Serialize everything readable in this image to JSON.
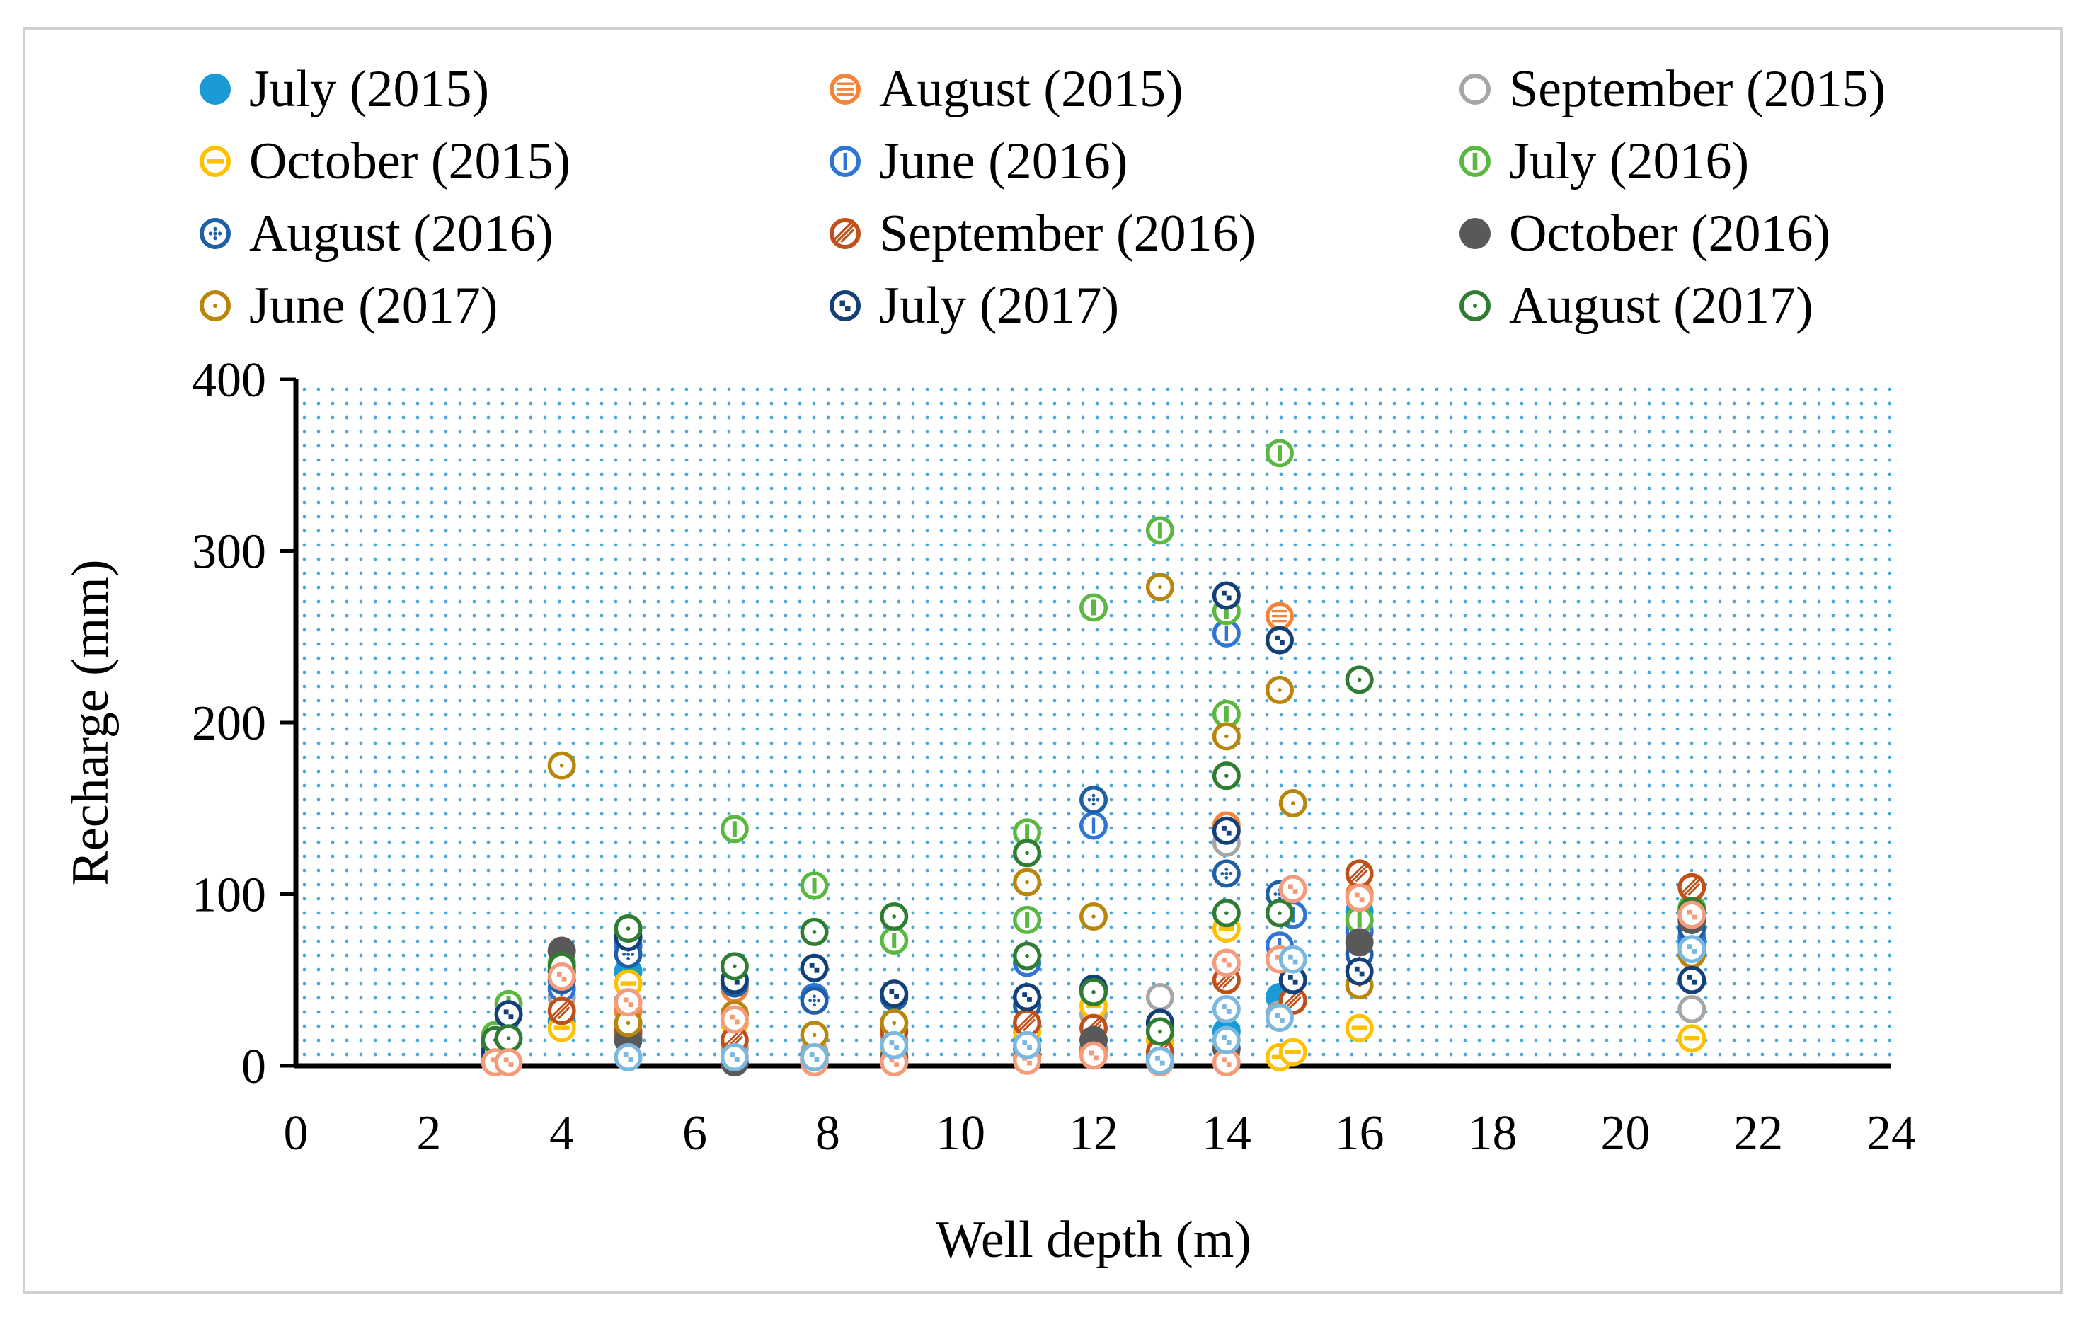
{
  "chart_data": {
    "type": "scatter",
    "title": "",
    "xlabel": "Well depth (m)",
    "ylabel": "Recharge (mm)",
    "xlim": [
      0,
      24
    ],
    "ylim": [
      0,
      400
    ],
    "x_ticks": [
      0,
      2,
      4,
      6,
      8,
      10,
      12,
      14,
      16,
      18,
      20,
      22,
      24
    ],
    "y_ticks": [
      0,
      100,
      200,
      300,
      400
    ],
    "grid": false,
    "plot_background": "dotted",
    "legend_position": "top",
    "series": [
      {
        "name": "July (2015)",
        "color": "#1a9ad6",
        "marker": "filled-circle",
        "x": [
          3.0,
          4.0,
          5.0,
          6.6,
          7.8,
          9.0,
          11.0,
          12.0,
          13.0,
          14.0,
          14.8,
          16.0,
          21.0
        ],
        "y": [
          5,
          26,
          55,
          30,
          6,
          10,
          15,
          10,
          5,
          20,
          40,
          90,
          70
        ]
      },
      {
        "name": "August (2015)",
        "color": "#f4843a",
        "marker": "horizontal-lines",
        "x": [
          3.0,
          4.0,
          5.0,
          6.6,
          7.8,
          9.0,
          11.0,
          12.0,
          13.0,
          14.0,
          14.8,
          16.0,
          21.0
        ],
        "y": [
          3,
          55,
          32,
          45,
          3,
          3,
          5,
          8,
          3,
          140,
          262,
          100,
          85
        ]
      },
      {
        "name": "September (2015)",
        "color": "#a6a6a6",
        "marker": "open-circle",
        "x": [
          3.0,
          4.0,
          5.0,
          6.6,
          7.8,
          9.0,
          11.0,
          12.0,
          13.0,
          14.0,
          14.8,
          16.0,
          21.0
        ],
        "y": [
          8,
          40,
          18,
          10,
          8,
          15,
          25,
          30,
          40,
          130,
          30,
          80,
          33
        ]
      },
      {
        "name": "October (2015)",
        "color": "#ffc000",
        "marker": "horizontal-bar",
        "x": [
          3.0,
          4.0,
          5.0,
          6.6,
          7.8,
          9.0,
          11.0,
          12.0,
          13.0,
          14.0,
          14.8,
          15.0,
          16.0,
          21.0
        ],
        "y": [
          5,
          22,
          48,
          25,
          5,
          8,
          20,
          35,
          15,
          80,
          5,
          8,
          22,
          16
        ]
      },
      {
        "name": "June (2016)",
        "color": "#2e75d6",
        "marker": "vertical-line",
        "x": [
          3.0,
          4.0,
          5.0,
          6.6,
          7.8,
          9.0,
          11.0,
          12.0,
          13.0,
          14.0,
          14.8,
          15.0,
          16.0,
          21.0
        ],
        "y": [
          10,
          45,
          70,
          50,
          40,
          25,
          60,
          140,
          20,
          252,
          70,
          88,
          78,
          75
        ]
      },
      {
        "name": "July (2016)",
        "color": "#5ab740",
        "marker": "vertical-bar",
        "x": [
          3.0,
          3.2,
          4.0,
          5.0,
          6.6,
          7.8,
          9.0,
          11.0,
          11.0,
          12.0,
          13.0,
          14.0,
          14.0,
          14.8,
          16.0,
          21.0
        ],
        "y": [
          18,
          36,
          60,
          80,
          138,
          105,
          73,
          85,
          136,
          267,
          312,
          265,
          205,
          357,
          85,
          92
        ]
      },
      {
        "name": "August (2016)",
        "color": "#1f5fa6",
        "marker": "cross-dots",
        "x": [
          3.0,
          4.0,
          5.0,
          6.6,
          7.8,
          9.0,
          11.0,
          12.0,
          13.0,
          14.0,
          14.8,
          16.0,
          21.0
        ],
        "y": [
          12,
          50,
          65,
          48,
          38,
          40,
          35,
          155,
          25,
          112,
          100,
          65,
          80
        ]
      },
      {
        "name": "September (2016)",
        "color": "#c0501a",
        "marker": "diagonal-hatch",
        "x": [
          3.0,
          4.0,
          5.0,
          6.6,
          7.8,
          9.0,
          11.0,
          12.0,
          13.0,
          14.0,
          15.0,
          16.0,
          21.0
        ],
        "y": [
          5,
          32,
          20,
          15,
          5,
          20,
          25,
          22,
          8,
          50,
          38,
          112,
          104
        ]
      },
      {
        "name": "October (2016)",
        "color": "#595959",
        "marker": "filled-circle",
        "x": [
          3.0,
          4.0,
          5.0,
          6.6,
          7.8,
          9.0,
          11.0,
          12.0,
          13.0,
          14.0,
          16.0,
          21.0
        ],
        "y": [
          3,
          67,
          15,
          2,
          3,
          5,
          10,
          15,
          3,
          10,
          72,
          85
        ]
      },
      {
        "name": "June (2017)",
        "color": "#b8860b",
        "marker": "open-circle-dot",
        "x": [
          3.0,
          4.0,
          5.0,
          6.6,
          7.8,
          9.0,
          11.0,
          12.0,
          13.0,
          14.0,
          14.8,
          15.0,
          16.0,
          21.0
        ],
        "y": [
          10,
          175,
          25,
          30,
          18,
          25,
          107,
          87,
          279,
          192,
          219,
          153,
          47,
          65
        ]
      },
      {
        "name": "July (2017)",
        "color": "#14407a",
        "marker": "checker",
        "x": [
          3.0,
          3.2,
          4.0,
          5.0,
          6.6,
          7.8,
          9.0,
          11.0,
          12.0,
          13.0,
          14.0,
          14.0,
          14.8,
          15.0,
          16.0,
          21.0
        ],
        "y": [
          8,
          30,
          55,
          75,
          50,
          57,
          42,
          40,
          45,
          25,
          274,
          137,
          248,
          50,
          55,
          50
        ]
      },
      {
        "name": "August (2017)",
        "color": "#2e7d32",
        "marker": "open-circle-dot",
        "x": [
          3.0,
          3.2,
          4.0,
          5.0,
          6.6,
          7.8,
          9.0,
          11.0,
          11.0,
          12.0,
          13.0,
          14.0,
          14.0,
          14.8,
          16.0,
          21.0
        ],
        "y": [
          15,
          16,
          58,
          80,
          58,
          78,
          87,
          64,
          124,
          43,
          20,
          169,
          89,
          89,
          225,
          90
        ]
      },
      {
        "name": "",
        "color": "#f59b7a",
        "marker": "checker",
        "x": [
          3.0,
          3.2,
          4.0,
          5.0,
          6.6,
          7.8,
          9.0,
          11.0,
          12.0,
          13.0,
          14.0,
          14.0,
          14.8,
          15.0,
          16.0,
          21.0
        ],
        "y": [
          2,
          2,
          52,
          37,
          27,
          2,
          2,
          3,
          6,
          2,
          2,
          60,
          62,
          103,
          98,
          88
        ]
      },
      {
        "name": "",
        "color": "#7ab8e0",
        "marker": "checker",
        "x": [
          5.0,
          6.6,
          7.8,
          9.0,
          11.0,
          13.0,
          14.0,
          14.0,
          14.8,
          15.0,
          21.0
        ],
        "y": [
          5,
          5,
          5,
          12,
          12,
          3,
          15,
          33,
          28,
          62,
          68
        ]
      }
    ]
  }
}
